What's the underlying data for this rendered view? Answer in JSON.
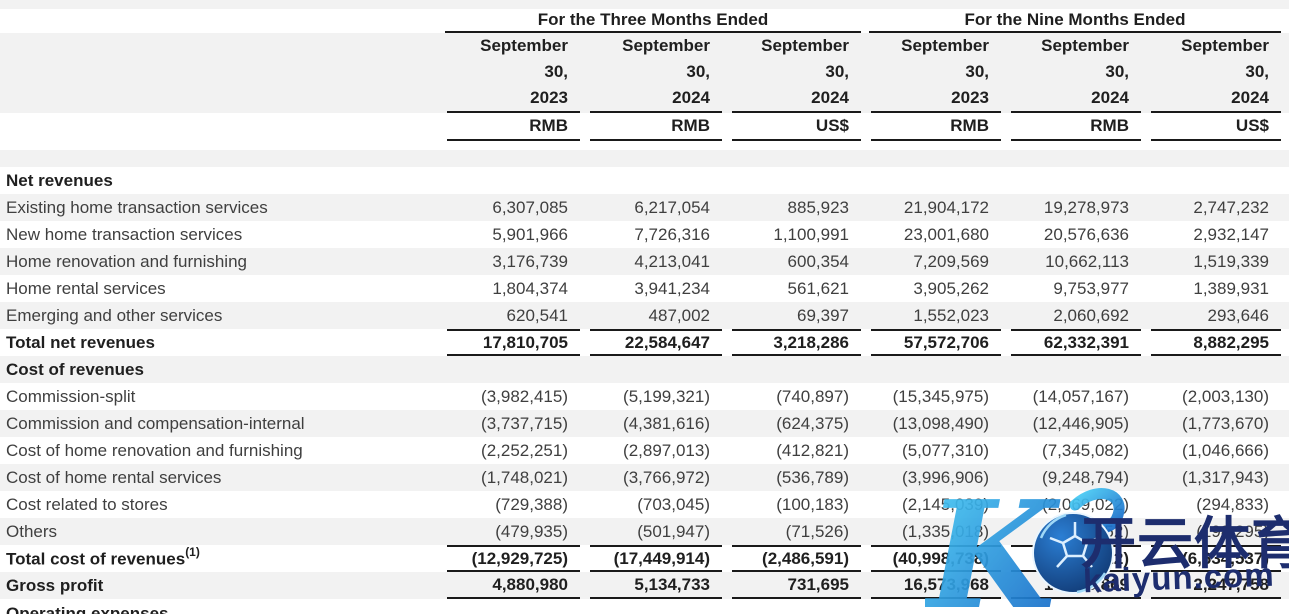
{
  "table": {
    "groups": [
      {
        "title": "For the Three Months Ended"
      },
      {
        "title": "For the Nine Months Ended"
      }
    ],
    "columns": [
      {
        "date_lines": [
          "September",
          "30,",
          "2023"
        ],
        "currency": "RMB"
      },
      {
        "date_lines": [
          "September",
          "30,",
          "2024"
        ],
        "currency": "RMB"
      },
      {
        "date_lines": [
          "September",
          "30,",
          "2024"
        ],
        "currency": "US$"
      },
      {
        "date_lines": [
          "September",
          "30,",
          "2023"
        ],
        "currency": "RMB"
      },
      {
        "date_lines": [
          "September",
          "30,",
          "2024"
        ],
        "currency": "RMB"
      },
      {
        "date_lines": [
          "September",
          "30,",
          "2024"
        ],
        "currency": "US$"
      }
    ],
    "rows": [
      {
        "type": "section",
        "label": "Net revenues",
        "shaded": false
      },
      {
        "type": "item",
        "label": "Existing home transaction services",
        "shaded": true,
        "values": [
          "6,307,085",
          "6,217,054",
          "885,923",
          "21,904,172",
          "19,278,973",
          "2,747,232"
        ]
      },
      {
        "type": "item",
        "label": "New home transaction services",
        "shaded": false,
        "values": [
          "5,901,966",
          "7,726,316",
          "1,100,991",
          "23,001,680",
          "20,576,636",
          "2,932,147"
        ]
      },
      {
        "type": "item",
        "label": "Home renovation and furnishing",
        "shaded": true,
        "values": [
          "3,176,739",
          "4,213,041",
          "600,354",
          "7,209,569",
          "10,662,113",
          "1,519,339"
        ]
      },
      {
        "type": "item",
        "label": "Home rental services",
        "shaded": false,
        "values": [
          "1,804,374",
          "3,941,234",
          "561,621",
          "3,905,262",
          "9,753,977",
          "1,389,931"
        ]
      },
      {
        "type": "item",
        "label": "Emerging and other services",
        "shaded": true,
        "values": [
          "620,541",
          "487,002",
          "69,397",
          "1,552,023",
          "2,060,692",
          "293,646"
        ]
      },
      {
        "type": "total",
        "label": "Total net revenues",
        "shaded": false,
        "values": [
          "17,810,705",
          "22,584,647",
          "3,218,286",
          "57,572,706",
          "62,332,391",
          "8,882,295"
        ]
      },
      {
        "type": "section",
        "label": "Cost of revenues",
        "shaded": true
      },
      {
        "type": "item",
        "label": "Commission-split",
        "shaded": false,
        "values": [
          "(3,982,415)",
          "(5,199,321)",
          "(740,897)",
          "(15,345,975)",
          "(14,057,167)",
          "(2,003,130)"
        ]
      },
      {
        "type": "item",
        "label": "Commission and compensation-internal",
        "shaded": true,
        "values": [
          "(3,737,715)",
          "(4,381,616)",
          "(624,375)",
          "(13,098,490)",
          "(12,446,905)",
          "(1,773,670)"
        ]
      },
      {
        "type": "item",
        "label": "Cost of home renovation and furnishing",
        "shaded": false,
        "values": [
          "(2,252,251)",
          "(2,897,013)",
          "(412,821)",
          "(5,077,310)",
          "(7,345,082)",
          "(1,046,666)"
        ]
      },
      {
        "type": "item",
        "label": "Cost of home rental services",
        "shaded": true,
        "values": [
          "(1,748,021)",
          "(3,766,972)",
          "(536,789)",
          "(3,996,906)",
          "(9,248,794)",
          "(1,317,943)"
        ]
      },
      {
        "type": "item",
        "label": "Cost related to stores",
        "shaded": false,
        "values": [
          "(729,388)",
          "(703,045)",
          "(100,183)",
          "(2,145,039)",
          "(2,069,022)",
          "(294,833)"
        ]
      },
      {
        "type": "item",
        "label": "Others",
        "shaded": true,
        "values": [
          "(479,935)",
          "(501,947)",
          "(71,526)",
          "(1,335,018)",
          "(1,391,552)",
          "(198,295)"
        ]
      },
      {
        "type": "total",
        "label": "Total cost of revenues",
        "sup": "(1)",
        "shaded": false,
        "values": [
          "(12,929,725)",
          "(17,449,914)",
          "(2,486,591)",
          "(40,998,738)",
          "(46,558,522)",
          "(6,634,537)"
        ]
      },
      {
        "type": "gross",
        "label": "Gross profit",
        "shaded": true,
        "values": [
          "4,880,980",
          "5,134,733",
          "731,695",
          "16,573,968",
          "15,773,869",
          "2,247,758"
        ]
      },
      {
        "type": "clipped",
        "label": "Operating expenses",
        "shaded": false
      }
    ]
  },
  "watermark": {
    "logo_letter": "K",
    "cn_text": "开云体育",
    "domain_text": "kaiyun.com",
    "gradient_start": "#49d0f7",
    "gradient_end": "#1262c4",
    "ball_dark": "#0d2f66",
    "ball_light": "#2b7fd4",
    "text_color": "#1d2d6e"
  },
  "colors": {
    "stripe": "#f2f2f2",
    "line": "#1a1a1a",
    "text": "#3f3f3f",
    "bold_text": "#1f1f1f"
  }
}
